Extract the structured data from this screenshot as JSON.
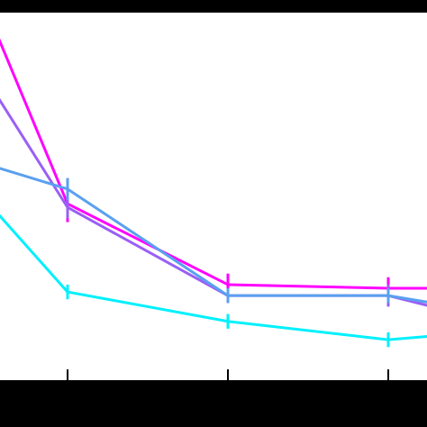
{
  "chart_data": {
    "type": "line",
    "title": "",
    "xlabel": "",
    "ylabel": "",
    "x": [
      0,
      1,
      2,
      3
    ],
    "xlim": [
      -0.42,
      2.25
    ],
    "ylim": [
      0,
      1
    ],
    "grid": false,
    "legend": "none",
    "background": "#ffffff",
    "frame_color": "#000000",
    "series": [
      {
        "color": "#ff00ff",
        "values": [
          0.95,
          0.48,
          0.26,
          0.25
        ],
        "errors": [
          0,
          0.05,
          0.03,
          0.03
        ],
        "x_end": 2.25,
        "y_end": 0.25
      },
      {
        "color": "#9a5ff5",
        "values": [
          0.78,
          0.47,
          0.23,
          0.23
        ],
        "errors": [
          0,
          0.03,
          0.02,
          0.03
        ],
        "x_end": 2.25,
        "y_end": 0.2
      },
      {
        "color": "#5aa0f0",
        "values": [
          0.58,
          0.52,
          0.23,
          0.23
        ],
        "errors": [
          0,
          0.03,
          0.02,
          0.02
        ],
        "x_end": 2.25,
        "y_end": 0.21
      },
      {
        "color": "#00f0ff",
        "values": [
          0.46,
          0.24,
          0.16,
          0.11
        ],
        "errors": [
          0,
          0.02,
          0.02,
          0.02
        ],
        "x_end": 2.25,
        "y_end": 0.12
      }
    ]
  }
}
